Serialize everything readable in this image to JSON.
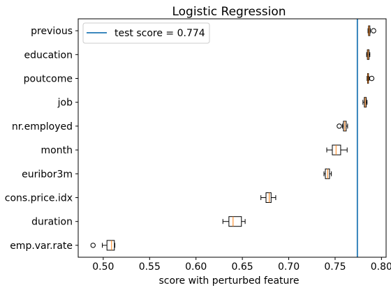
{
  "chart_data": {
    "type": "boxplot",
    "orientation": "horizontal",
    "title": "Logistic Regression",
    "xlabel": "score with perturbed feature",
    "ylabel": "",
    "xlim": [
      0.473,
      0.805
    ],
    "xticks": [
      "0.50",
      "0.55",
      "0.60",
      "0.65",
      "0.70",
      "0.75",
      "0.80"
    ],
    "grid": false,
    "legend": {
      "placement": "top-left",
      "entries": [
        "test score = 0.774"
      ]
    },
    "reference_line": {
      "value": 0.774,
      "label": "test score = 0.774",
      "color": "#1f77b4"
    },
    "colors": {
      "box": "#000000",
      "median": "#ff7f0e",
      "whisker": "#000000"
    },
    "categories": [
      "previous",
      "education",
      "poutcome",
      "job",
      "nr.employed",
      "month",
      "euribor3m",
      "cons.price.idx",
      "duration",
      "emp.var.rate"
    ],
    "boxes": [
      {
        "label": "previous",
        "whislo": 0.7855,
        "q1": 0.786,
        "med": 0.7865,
        "q3": 0.7875,
        "whishi": 0.788,
        "fliers": [
          0.7915
        ]
      },
      {
        "label": "education",
        "whislo": 0.784,
        "q1": 0.7848,
        "med": 0.7855,
        "q3": 0.7865,
        "whishi": 0.7875,
        "fliers": []
      },
      {
        "label": "poutcome",
        "whislo": 0.7845,
        "q1": 0.785,
        "med": 0.7855,
        "q3": 0.786,
        "whishi": 0.7865,
        "fliers": [
          0.7895
        ]
      },
      {
        "label": "job",
        "whislo": 0.78,
        "q1": 0.7815,
        "med": 0.7825,
        "q3": 0.7835,
        "whishi": 0.7845,
        "fliers": []
      },
      {
        "label": "nr.employed",
        "whislo": 0.758,
        "q1": 0.759,
        "med": 0.7605,
        "q3": 0.762,
        "whishi": 0.7635,
        "fliers": [
          0.7545
        ]
      },
      {
        "label": "month",
        "whislo": 0.741,
        "q1": 0.747,
        "med": 0.751,
        "q3": 0.756,
        "whishi": 0.763,
        "fliers": []
      },
      {
        "label": "euribor3m",
        "whislo": 0.738,
        "q1": 0.7395,
        "med": 0.742,
        "q3": 0.744,
        "whishi": 0.746,
        "fliers": []
      },
      {
        "label": "cons.price.idx",
        "whislo": 0.67,
        "q1": 0.6755,
        "med": 0.679,
        "q3": 0.681,
        "whishi": 0.686,
        "fliers": []
      },
      {
        "label": "duration",
        "whislo": 0.629,
        "q1": 0.6355,
        "med": 0.64,
        "q3": 0.649,
        "whishi": 0.653,
        "fliers": []
      },
      {
        "label": "emp.var.rate",
        "whislo": 0.499,
        "q1": 0.504,
        "med": 0.509,
        "q3": 0.512,
        "whishi": 0.5125,
        "fliers": [
          0.489
        ]
      }
    ]
  }
}
